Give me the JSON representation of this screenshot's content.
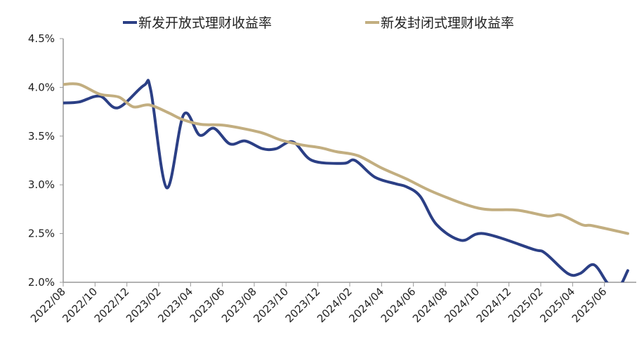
{
  "chart_data": {
    "type": "line",
    "title": "",
    "xlabel": "",
    "ylabel": "",
    "ylim": [
      2.0,
      4.5
    ],
    "y_ticks": [
      "2.0%",
      "2.5%",
      "3.0%",
      "3.5%",
      "4.0%",
      "4.5%"
    ],
    "y_tick_values": [
      2.0,
      2.5,
      3.0,
      3.5,
      4.0,
      4.5
    ],
    "x_range": [
      "2022/08",
      "2025/08"
    ],
    "x_ticks": [
      "2022/08",
      "2022/10",
      "2022/12",
      "2023/02",
      "2023/04",
      "2023/06",
      "2023/08",
      "2023/10",
      "2023/12",
      "2024/02",
      "2024/04",
      "2024/06",
      "2024/08",
      "2024/10",
      "2024/12",
      "2025/02",
      "2025/04",
      "2025/06"
    ],
    "grid": false,
    "legend_position": "top",
    "series": [
      {
        "name": "新发开放式理财收益率",
        "color": "#2b3f85",
        "points": [
          [
            "2022/08/01",
            3.84
          ],
          [
            "2022/09/01",
            3.85
          ],
          [
            "2022/10/10",
            3.91
          ],
          [
            "2022/11/14",
            3.79
          ],
          [
            "2023/01/03",
            4.02
          ],
          [
            "2023/01/16",
            3.97
          ],
          [
            "2023/02/16",
            2.97
          ],
          [
            "2023/03/18",
            3.72
          ],
          [
            "2023/04/18",
            3.51
          ],
          [
            "2023/05/15",
            3.58
          ],
          [
            "2023/06/15",
            3.42
          ],
          [
            "2023/07/14",
            3.45
          ],
          [
            "2023/08/17",
            3.37
          ],
          [
            "2023/09/12",
            3.37
          ],
          [
            "2023/10/14",
            3.44
          ],
          [
            "2023/11/20",
            3.25
          ],
          [
            "2024/01/19",
            3.22
          ],
          [
            "2024/02/11",
            3.25
          ],
          [
            "2024/03/18",
            3.08
          ],
          [
            "2024/04/28",
            3.01
          ],
          [
            "2024/05/18",
            2.98
          ],
          [
            "2024/06/14",
            2.88
          ],
          [
            "2024/07/15",
            2.59
          ],
          [
            "2024/09/01",
            2.43
          ],
          [
            "2024/10/13",
            2.5
          ],
          [
            "2025/01/16",
            2.34
          ],
          [
            "2025/02/09",
            2.3
          ],
          [
            "2025/03/22",
            2.09
          ],
          [
            "2025/04/15",
            2.09
          ],
          [
            "2025/05/11",
            2.18
          ],
          [
            "2025/06/07",
            1.99
          ],
          [
            "2025/06/25",
            1.92
          ],
          [
            "2025/07/15",
            2.12
          ]
        ]
      },
      {
        "name": "新发封闭式理财收益率",
        "color": "#c2ae80",
        "points": [
          [
            "2022/08/01",
            4.03
          ],
          [
            "2022/09/01",
            4.03
          ],
          [
            "2022/10/10",
            3.93
          ],
          [
            "2022/11/16",
            3.9
          ],
          [
            "2022/12/13",
            3.8
          ],
          [
            "2023/01/13",
            3.82
          ],
          [
            "2023/02/19",
            3.74
          ],
          [
            "2023/03/16",
            3.67
          ],
          [
            "2023/04/21",
            3.62
          ],
          [
            "2023/06/05",
            3.61
          ],
          [
            "2023/08/11",
            3.54
          ],
          [
            "2023/09/21",
            3.46
          ],
          [
            "2023/10/30",
            3.41
          ],
          [
            "2023/12/06",
            3.38
          ],
          [
            "2024/01/06",
            3.34
          ],
          [
            "2024/02/16",
            3.3
          ],
          [
            "2024/04/02",
            3.17
          ],
          [
            "2024/05/18",
            3.06
          ],
          [
            "2024/07/11",
            2.92
          ],
          [
            "2024/10/04",
            2.76
          ],
          [
            "2024/12/16",
            2.74
          ],
          [
            "2025/02/13",
            2.68
          ],
          [
            "2025/03/09",
            2.69
          ],
          [
            "2025/04/19",
            2.59
          ],
          [
            "2025/05/09",
            2.58
          ],
          [
            "2025/07/15",
            2.5
          ]
        ]
      }
    ]
  }
}
